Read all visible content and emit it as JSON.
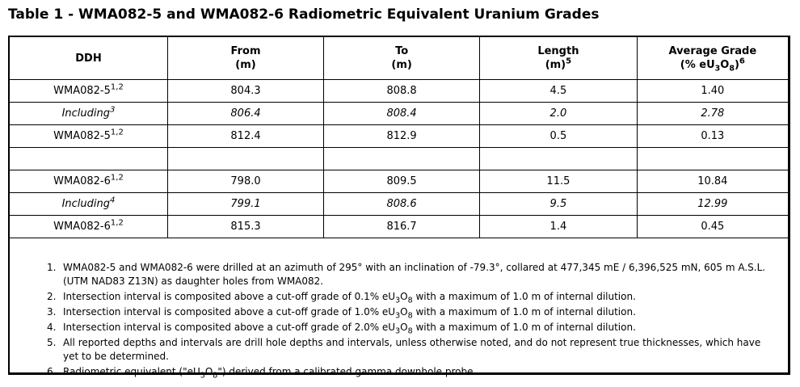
{
  "title": "Table 1 - WMA082-5 and WMA082-6 Radiometric Equivalent Uranium Grades",
  "colors": {
    "text": "#000000",
    "background": "#ffffff",
    "border": "#000000"
  },
  "table": {
    "headers": [
      "DDH",
      "From<br>(m)",
      "To<br>(m)",
      "Length<br>(m)<sup>5</sup>",
      "Average Grade<br>(% eU<sub>3</sub>O<sub>8</sub>)<sup>6</sup>"
    ],
    "rows": [
      {
        "style": "normal",
        "cells": [
          "WMA082-5<sup>1,2</sup>",
          "804.3",
          "808.8",
          "4.5",
          "1.40"
        ]
      },
      {
        "style": "italic",
        "cells": [
          "Including<sup>3</sup>",
          "806.4",
          "808.4",
          "2.0",
          "2.78"
        ]
      },
      {
        "style": "normal",
        "cells": [
          "WMA082-5<sup>1,2</sup>",
          "812.4",
          "812.9",
          "0.5",
          "0.13"
        ]
      },
      {
        "style": "empty",
        "cells": [
          "",
          "",
          "",
          "",
          ""
        ]
      },
      {
        "style": "normal",
        "cells": [
          "WMA082-6<sup>1,2</sup>",
          "798.0",
          "809.5",
          "11.5",
          "10.84"
        ]
      },
      {
        "style": "italic",
        "cells": [
          "Including<sup>4</sup>",
          "799.1",
          "808.6",
          "9.5",
          "12.99"
        ]
      },
      {
        "style": "normal",
        "cells": [
          "WMA082-6<sup>1,2</sup>",
          "815.3",
          "816.7",
          "1.4",
          "0.45"
        ]
      }
    ]
  },
  "footnotes": [
    {
      "num": "1.",
      "text": "WMA082-5 and WMA082-6 were drilled at an azimuth of 295° with an inclination of -79.3°, collared at 477,345 mE / 6,396,525 mN, 605 m A.S.L. (UTM NAD83 Z13N) as daughter holes from WMA082."
    },
    {
      "num": "2.",
      "text": "Intersection interval is composited above a cut-off grade of 0.1% eU<sub>3</sub>O<sub>8</sub> with a maximum of 1.0 m of internal dilution."
    },
    {
      "num": "3.",
      "text": "Intersection interval is composited above a cut-off grade of 1.0% eU<sub>3</sub>O<sub>8</sub> with a maximum of 1.0 m of internal dilution."
    },
    {
      "num": "4.",
      "text": "Intersection interval is composited above a cut-off grade of 2.0% eU<sub>3</sub>O<sub>8</sub> with a maximum of 1.0 m of internal dilution."
    },
    {
      "num": "5.",
      "text": "All reported depths and intervals are drill hole depths and intervals, unless otherwise noted, and do not represent true thicknesses, which have yet to be determined."
    },
    {
      "num": "6.",
      "text": "Radiometric equivalent (\"eU<sub>3</sub>O<sub>8</sub>\") derived from a calibrated gamma downhole probe."
    }
  ]
}
